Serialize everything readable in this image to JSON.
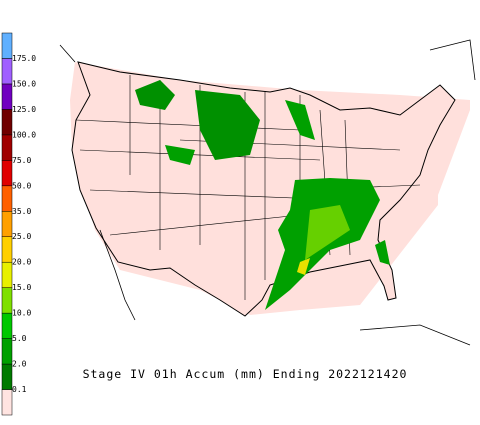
{
  "caption": "Stage IV 01h Accum (mm) Ending 2022121420",
  "colorbar": {
    "labels": [
      "0.1",
      "2.0",
      "5.0",
      "10.0",
      "15.0",
      "20.0",
      "25.0",
      "35.0",
      "50.0",
      "75.0",
      "100.0",
      "125.0",
      "150.0",
      "175.0"
    ],
    "colors": [
      "#ffe4e1",
      "#007a00",
      "#00a000",
      "#00c800",
      "#7fe000",
      "#e8f000",
      "#ffd000",
      "#ffa000",
      "#ff6000",
      "#e00000",
      "#a00000",
      "#700000",
      "#7000c0",
      "#a060ff",
      "#60b0ff"
    ]
  }
}
